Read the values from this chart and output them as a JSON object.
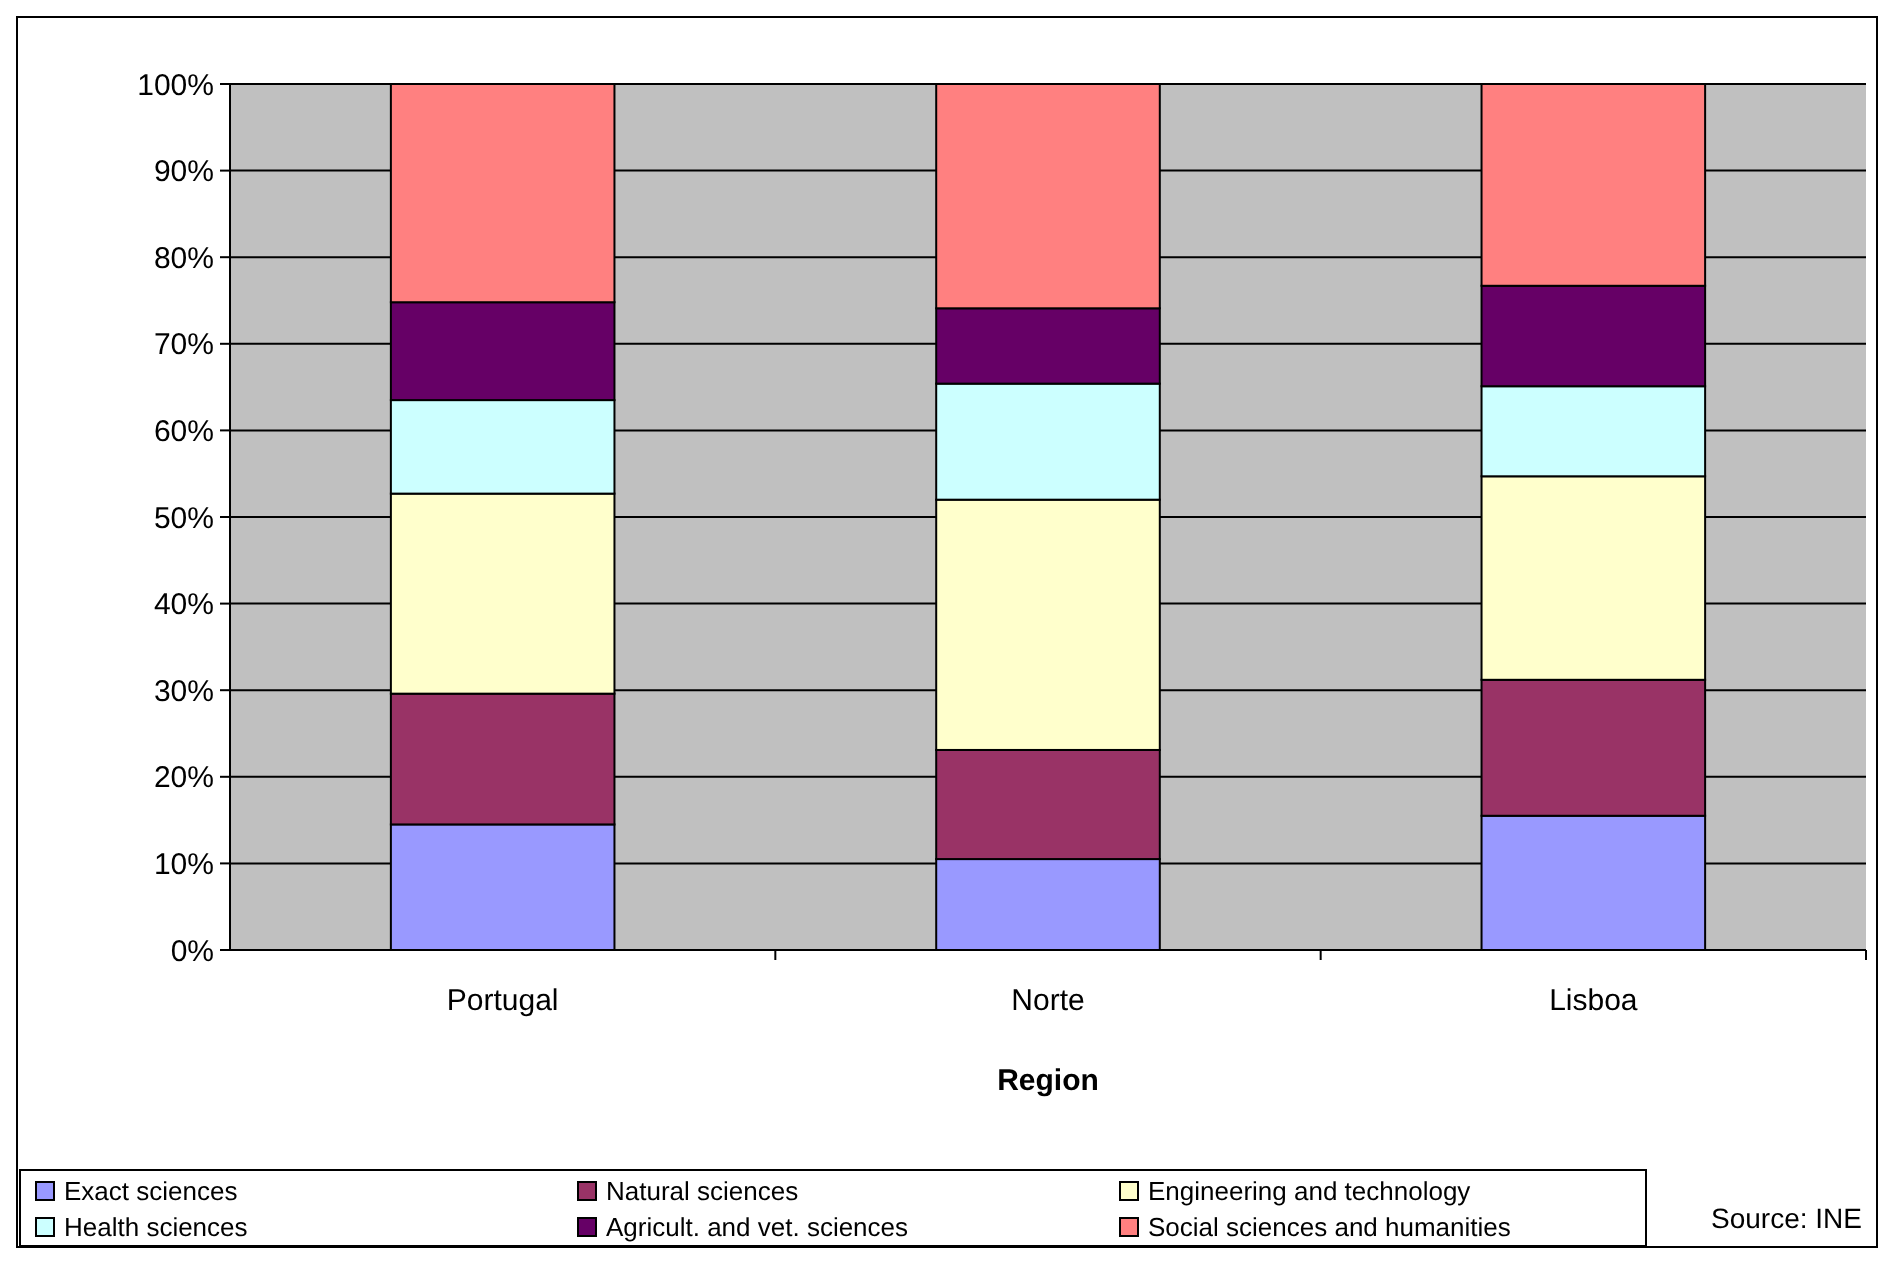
{
  "chart_data": {
    "type": "bar",
    "stacked": true,
    "xlabel": "Region",
    "categories": [
      "Portugal",
      "Norte",
      "Lisboa"
    ],
    "series": [
      {
        "name": "Exact sciences",
        "color": "#9999ff",
        "values": [
          14.5,
          10.5,
          15.5
        ]
      },
      {
        "name": "Natural sciences",
        "color": "#993366",
        "values": [
          15.1,
          12.6,
          15.7
        ]
      },
      {
        "name": "Engineering and technology",
        "color": "#ffffcc",
        "values": [
          23.1,
          28.9,
          23.5
        ]
      },
      {
        "name": "Health sciences",
        "color": "#ccffff",
        "values": [
          10.8,
          13.4,
          10.4
        ]
      },
      {
        "name": "Agricult. and vet. sciences",
        "color": "#660066",
        "values": [
          11.3,
          8.7,
          11.6
        ]
      },
      {
        "name": "Social sciences and humanities",
        "color": "#ff8080",
        "values": [
          25.2,
          25.9,
          23.3
        ]
      }
    ],
    "ylim": [
      0,
      100
    ],
    "yticks": [
      {
        "value": 0,
        "label": "0%"
      },
      {
        "value": 10,
        "label": "10%"
      },
      {
        "value": 20,
        "label": "20%"
      },
      {
        "value": 30,
        "label": "30%"
      },
      {
        "value": 40,
        "label": "40%"
      },
      {
        "value": 50,
        "label": "50%"
      },
      {
        "value": 60,
        "label": "60%"
      },
      {
        "value": 70,
        "label": "70%"
      },
      {
        "value": 80,
        "label": "80%"
      },
      {
        "value": 90,
        "label": "90%"
      },
      {
        "value": 100,
        "label": "100%"
      }
    ],
    "grid": "y",
    "legend": "bottom",
    "annotations": [
      "Source: INE"
    ]
  }
}
